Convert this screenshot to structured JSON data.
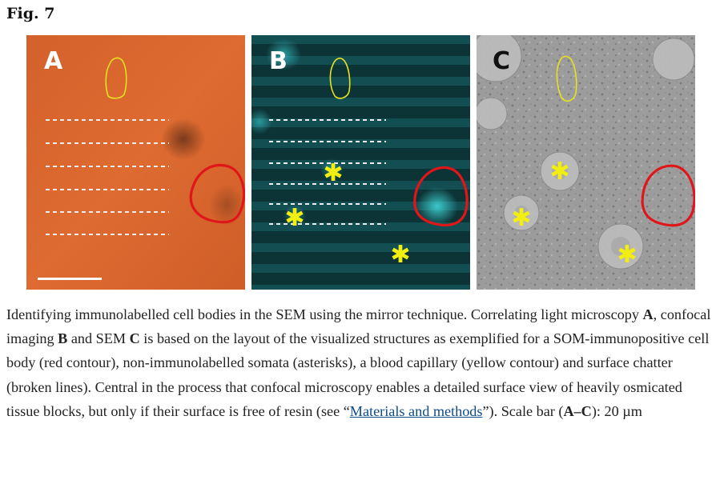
{
  "figure": {
    "label": "Fig. 7",
    "panels": [
      {
        "letter": "A",
        "modality": "light microscopy",
        "background": "#d9652c"
      },
      {
        "letter": "B",
        "modality": "confocal imaging",
        "background": "#0d3b3d"
      },
      {
        "letter": "C",
        "modality": "SEM",
        "background": "#9a9a9a"
      }
    ],
    "colors": {
      "red_contour": "#e0161a",
      "yellow_contour": "#e6e21e",
      "asterisk": "#f2ee12",
      "broken_lines": "#e8e8e8",
      "scale_bar": "#ffffff"
    }
  },
  "caption": {
    "part1": "Identifying immunolabelled cell bodies in the SEM using the mirror technique. Correlating light microscopy ",
    "a": "A",
    "part2": ", confocal imaging ",
    "b": "B",
    "part3": " and SEM ",
    "c": "C",
    "part4": " is based on the layout of the visualized structures as exemplified for a SOM-immunopositive cell body (red contour), non-immunolabelled somata (asterisks), a blood capillary (yellow contour) and surface chatter (broken lines). Central in the process that confocal microscopy enables a detailed surface view of heavily osmicated tissue blocks, but only if their surface is free of resin (see “",
    "link": "Materials and methods",
    "part5": "”). Scale bar (",
    "range": "A–C",
    "part6": "): 20 µm"
  }
}
